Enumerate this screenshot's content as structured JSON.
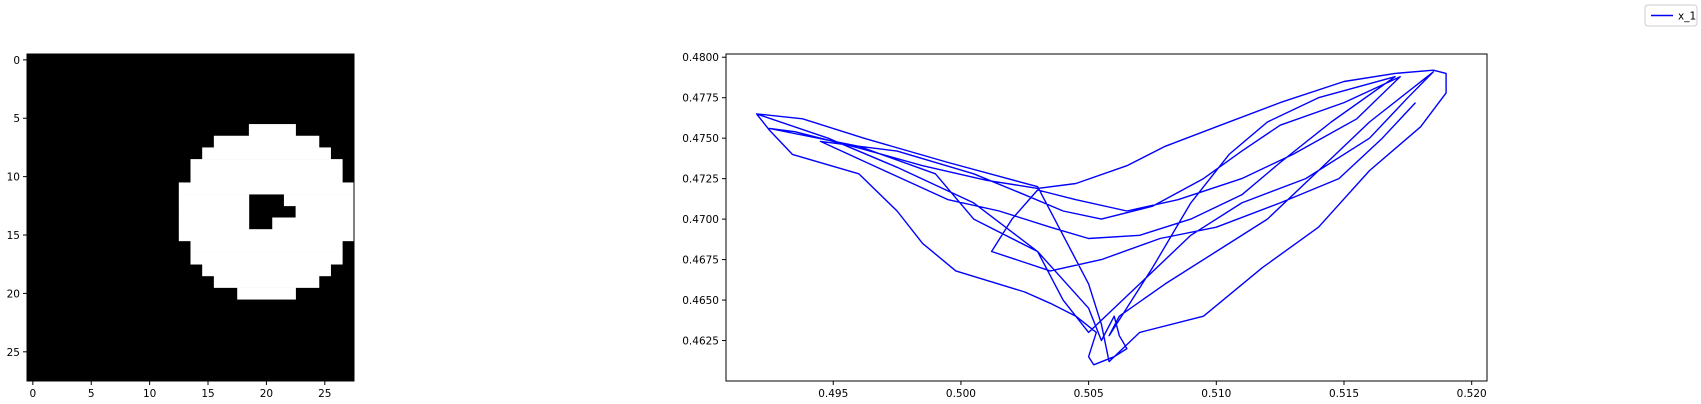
{
  "chart_data": [
    {
      "type": "heatmap",
      "colormap": "gray",
      "grid_size": [
        28,
        28
      ],
      "xlim": [
        -0.5,
        27.5
      ],
      "ylim": [
        27.5,
        -0.5
      ],
      "xticks": [
        0,
        5,
        10,
        15,
        20,
        25
      ],
      "yticks": [
        0,
        5,
        10,
        15,
        20,
        25
      ],
      "xtick_labels": [
        "0",
        "5",
        "10",
        "15",
        "20",
        "25"
      ],
      "ytick_labels": [
        "0",
        "5",
        "10",
        "15",
        "20",
        "25"
      ],
      "white_rows": [
        {
          "row": 6,
          "spans": [
            [
              19,
              22
            ]
          ]
        },
        {
          "row": 7,
          "spans": [
            [
              16,
              24
            ]
          ]
        },
        {
          "row": 8,
          "spans": [
            [
              15,
              25
            ]
          ]
        },
        {
          "row": 9,
          "spans": [
            [
              14,
              26
            ]
          ]
        },
        {
          "row": 10,
          "spans": [
            [
              14,
              26
            ]
          ]
        },
        {
          "row": 11,
          "spans": [
            [
              13,
              27
            ]
          ]
        },
        {
          "row": 12,
          "spans": [
            [
              13,
              18
            ],
            [
              22,
              27
            ]
          ]
        },
        {
          "row": 13,
          "spans": [
            [
              13,
              18
            ],
            [
              23,
              27
            ]
          ]
        },
        {
          "row": 14,
          "spans": [
            [
              13,
              18
            ],
            [
              21,
              27
            ]
          ]
        },
        {
          "row": 15,
          "spans": [
            [
              13,
              27
            ]
          ]
        },
        {
          "row": 16,
          "spans": [
            [
              14,
              26
            ]
          ]
        },
        {
          "row": 17,
          "spans": [
            [
              14,
              26
            ]
          ]
        },
        {
          "row": 18,
          "spans": [
            [
              15,
              25
            ]
          ]
        },
        {
          "row": 19,
          "spans": [
            [
              16,
              24
            ]
          ]
        },
        {
          "row": 20,
          "spans": [
            [
              18,
              22
            ]
          ]
        }
      ]
    },
    {
      "type": "line",
      "xlim": [
        0.4908,
        0.5206
      ],
      "ylim": [
        0.46,
        0.4802
      ],
      "xticks": [
        0.495,
        0.5,
        0.505,
        0.51,
        0.515,
        0.52
      ],
      "yticks": [
        0.4625,
        0.465,
        0.4675,
        0.47,
        0.4725,
        0.475,
        0.4775,
        0.48
      ],
      "xtick_labels": [
        "0.495",
        "0.500",
        "0.505",
        "0.510",
        "0.515",
        "0.520"
      ],
      "ytick_labels": [
        "0.4625",
        "0.4650",
        "0.4675",
        "0.4700",
        "0.4725",
        "0.4750",
        "0.4775",
        "0.4800"
      ],
      "grid": false,
      "series": [
        {
          "name": "x_1",
          "color": "#0000ff",
          "points": [
            [
              0.492,
              0.4765
            ],
            [
              0.4925,
              0.4755
            ],
            [
              0.4934,
              0.474
            ],
            [
              0.496,
              0.4728
            ],
            [
              0.4975,
              0.4705
            ],
            [
              0.4985,
              0.4685
            ],
            [
              0.4998,
              0.4668
            ],
            [
              0.5025,
              0.4655
            ],
            [
              0.5035,
              0.4648
            ],
            [
              0.5045,
              0.464
            ],
            [
              0.5053,
              0.463
            ],
            [
              0.505,
              0.4615
            ],
            [
              0.5052,
              0.461
            ],
            [
              0.506,
              0.4615
            ],
            [
              0.5065,
              0.462
            ],
            [
              0.5062,
              0.4628
            ],
            [
              0.506,
              0.464
            ],
            [
              0.5055,
              0.4625
            ],
            [
              0.505,
              0.4645
            ],
            [
              0.503,
              0.468
            ],
            [
              0.5005,
              0.471
            ],
            [
              0.4975,
              0.4732
            ],
            [
              0.4948,
              0.475
            ],
            [
              0.492,
              0.4765
            ],
            [
              0.4938,
              0.4762
            ],
            [
              0.4962,
              0.475
            ],
            [
              0.4995,
              0.4735
            ],
            [
              0.503,
              0.472
            ],
            [
              0.504,
              0.469
            ],
            [
              0.505,
              0.466
            ],
            [
              0.5055,
              0.4635
            ],
            [
              0.5058,
              0.4612
            ],
            [
              0.507,
              0.463
            ],
            [
              0.5095,
              0.464
            ],
            [
              0.5118,
              0.467
            ],
            [
              0.514,
              0.4695
            ],
            [
              0.516,
              0.473
            ],
            [
              0.518,
              0.4757
            ],
            [
              0.519,
              0.4778
            ],
            [
              0.519,
              0.479
            ],
            [
              0.5185,
              0.4792
            ],
            [
              0.517,
              0.479
            ],
            [
              0.515,
              0.4785
            ],
            [
              0.5125,
              0.4772
            ],
            [
              0.51,
              0.4757
            ],
            [
              0.508,
              0.4745
            ],
            [
              0.5065,
              0.4733
            ],
            [
              0.5045,
              0.4722
            ],
            [
              0.503,
              0.4719
            ],
            [
              0.501,
              0.4724
            ],
            [
              0.4985,
              0.4733
            ],
            [
              0.496,
              0.4744
            ],
            [
              0.4935,
              0.4754
            ],
            [
              0.4925,
              0.4756
            ],
            [
              0.496,
              0.4745
            ],
            [
              0.499,
              0.4728
            ],
            [
              0.5005,
              0.47
            ],
            [
              0.503,
              0.468
            ],
            [
              0.504,
              0.465
            ],
            [
              0.505,
              0.463
            ],
            [
              0.507,
              0.466
            ],
            [
              0.509,
              0.469
            ],
            [
              0.511,
              0.471
            ],
            [
              0.5135,
              0.4725
            ],
            [
              0.516,
              0.475
            ],
            [
              0.5175,
              0.4775
            ],
            [
              0.5185,
              0.4791
            ],
            [
              0.516,
              0.476
            ],
            [
              0.514,
              0.473
            ],
            [
              0.512,
              0.47
            ],
            [
              0.51,
              0.468
            ],
            [
              0.508,
              0.466
            ],
            [
              0.5062,
              0.464
            ],
            [
              0.5058,
              0.4628
            ],
            [
              0.5075,
              0.467
            ],
            [
              0.509,
              0.471
            ],
            [
              0.5105,
              0.474
            ],
            [
              0.512,
              0.476
            ],
            [
              0.514,
              0.4775
            ],
            [
              0.517,
              0.4788
            ],
            [
              0.5145,
              0.476
            ],
            [
              0.5125,
              0.4735
            ],
            [
              0.511,
              0.4715
            ],
            [
              0.509,
              0.47
            ],
            [
              0.507,
              0.469
            ],
            [
              0.505,
              0.4688
            ],
            [
              0.5035,
              0.4695
            ],
            [
              0.5015,
              0.4705
            ],
            [
              0.4995,
              0.4712
            ],
            [
              0.497,
              0.473
            ],
            [
              0.4945,
              0.4748
            ],
            [
              0.4975,
              0.4742
            ],
            [
              0.5005,
              0.4728
            ],
            [
              0.5025,
              0.4715
            ],
            [
              0.504,
              0.4705
            ],
            [
              0.5055,
              0.47
            ],
            [
              0.5075,
              0.4708
            ],
            [
              0.5095,
              0.4725
            ],
            [
              0.511,
              0.4742
            ],
            [
              0.5125,
              0.4758
            ],
            [
              0.515,
              0.4772
            ],
            [
              0.5172,
              0.4788
            ],
            [
              0.5155,
              0.4762
            ],
            [
              0.513,
              0.474
            ],
            [
              0.511,
              0.4725
            ],
            [
              0.5085,
              0.4712
            ],
            [
              0.5065,
              0.4705
            ],
            [
              0.5045,
              0.4712
            ],
            [
              0.503,
              0.4718
            ],
            [
              0.502,
              0.47
            ],
            [
              0.5012,
              0.468
            ],
            [
              0.5035,
              0.4668
            ],
            [
              0.5055,
              0.4675
            ],
            [
              0.5078,
              0.4688
            ],
            [
              0.51,
              0.4695
            ],
            [
              0.5125,
              0.471
            ],
            [
              0.5148,
              0.4725
            ],
            [
              0.5165,
              0.475
            ],
            [
              0.5178,
              0.4772
            ]
          ]
        }
      ],
      "legend": {
        "placement": "top-right"
      }
    }
  ]
}
